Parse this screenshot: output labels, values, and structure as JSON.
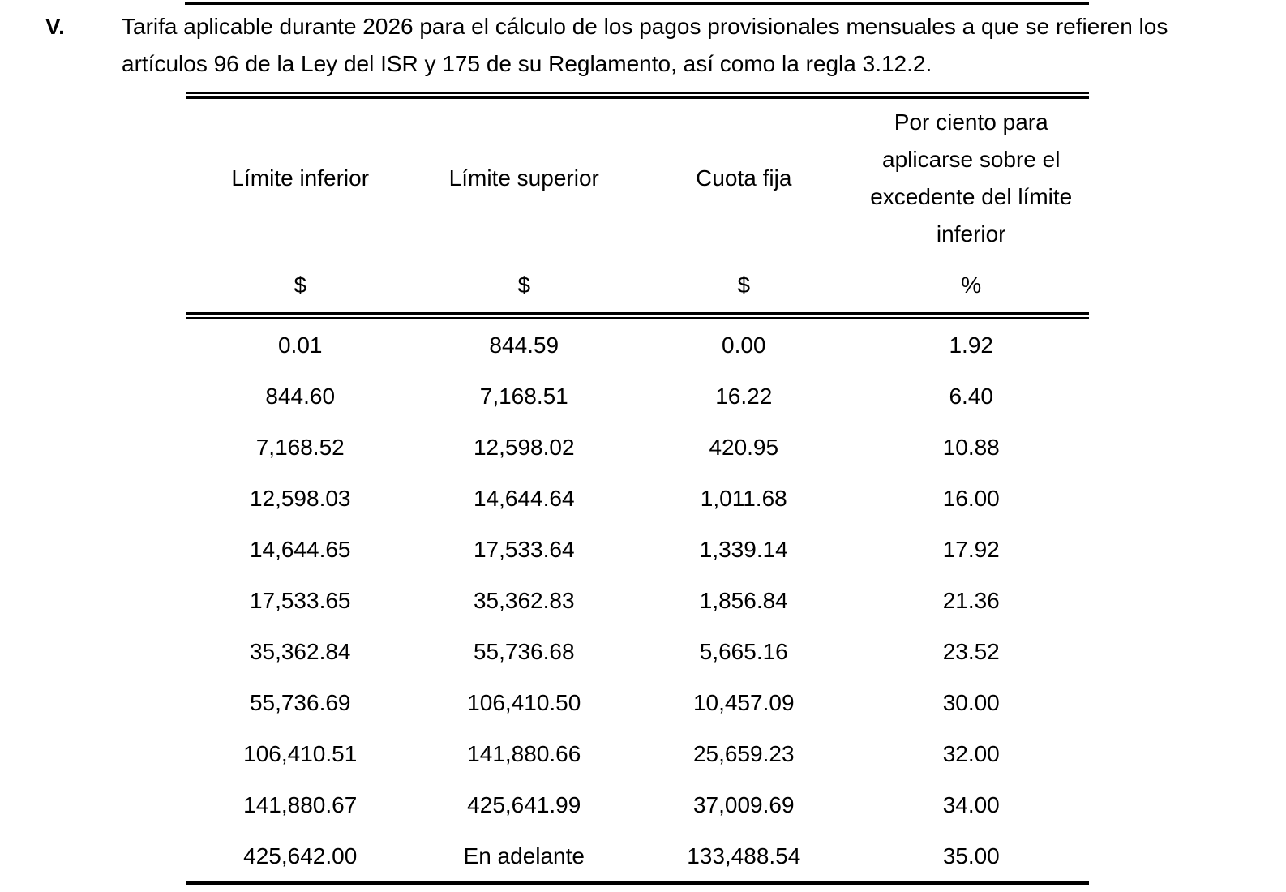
{
  "page": {
    "background": "#ffffff",
    "text_color": "#000000",
    "rule_color": "#000000"
  },
  "document": {
    "section_number": "V.",
    "heading_line1": "Tarifa aplicable durante 2026 para el cálculo de los pagos provisionales mensuales a que se refieren los",
    "heading_line2": "artículos 96 de la Ley del ISR y 175 de su Reglamento, así como la regla 3.12.2."
  },
  "table": {
    "headers": {
      "col1": "Límite inferior",
      "col2": "Límite superior",
      "col3": "Cuota fija",
      "col4_lines": [
        "Por ciento para",
        "aplicarse sobre el",
        "excedente del límite",
        "inferior"
      ]
    },
    "units": [
      "$",
      "$",
      "$",
      "%"
    ],
    "rows": [
      [
        "0.01",
        "844.59",
        "0.00",
        "1.92"
      ],
      [
        "844.60",
        "7,168.51",
        "16.22",
        "6.40"
      ],
      [
        "7,168.52",
        "12,598.02",
        "420.95",
        "10.88"
      ],
      [
        "12,598.03",
        "14,644.64",
        "1,011.68",
        "16.00"
      ],
      [
        "14,644.65",
        "17,533.64",
        "1,339.14",
        "17.92"
      ],
      [
        "17,533.65",
        "35,362.83",
        "1,856.84",
        "21.36"
      ],
      [
        "35,362.84",
        "55,736.68",
        "5,665.16",
        "23.52"
      ],
      [
        "55,736.69",
        "106,410.50",
        "10,457.09",
        "30.00"
      ],
      [
        "106,410.51",
        "141,880.66",
        "25,659.23",
        "32.00"
      ],
      [
        "141,880.67",
        "425,641.99",
        "37,009.69",
        "34.00"
      ],
      [
        "425,642.00",
        "En adelante",
        "133,488.54",
        "35.00"
      ]
    ]
  }
}
